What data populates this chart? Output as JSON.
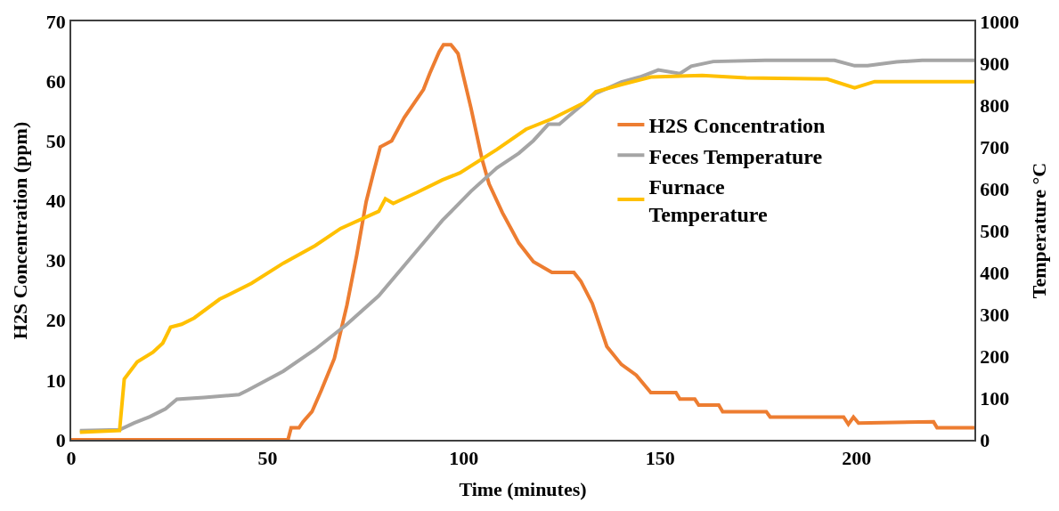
{
  "chart_data": {
    "type": "line",
    "xlabel": "Time (minutes)",
    "ylabel": "H2S Concentration (ppm)",
    "y2label": "Temperature °C",
    "xlim": [
      0,
      230
    ],
    "xticks": [
      0,
      50,
      100,
      150,
      200
    ],
    "ylim": [
      0,
      70
    ],
    "yticks": [
      0,
      10,
      20,
      30,
      40,
      50,
      60,
      70
    ],
    "y2lim": [
      0,
      1000
    ],
    "y2ticks": [
      0,
      100,
      200,
      300,
      400,
      500,
      600,
      700,
      800,
      900,
      1000
    ],
    "legend": "right",
    "marker": "none",
    "line_style": "solid",
    "series": [
      {
        "name": "H2S Concentration",
        "color": "#ed7d31",
        "x": [
          0,
          55.2,
          56,
          58,
          59,
          61.3,
          63.7,
          67,
          70.2,
          72.7,
          75.1,
          77.1,
          78.7,
          81.6,
          84.8,
          89.7,
          91.3,
          93.7,
          94.8,
          96.7,
          98.5,
          101.8,
          104.6,
          106.4,
          109.8,
          114,
          117.7,
          122.4,
          128,
          129.8,
          132.7,
          136.4,
          140.1,
          143.9,
          147.6,
          154,
          155,
          158.8,
          159.8,
          164.9,
          165.9,
          177,
          178,
          196.7,
          197.9,
          199.2,
          200.5,
          219.6,
          220.5,
          230
        ],
        "values": [
          0,
          0,
          2,
          2,
          3,
          4.7,
          8.3,
          13.6,
          22.5,
          30.9,
          39.8,
          45,
          49,
          50,
          53.9,
          58.6,
          61.3,
          64.9,
          66.1,
          66.1,
          64.6,
          55.5,
          47,
          42.8,
          38,
          32.9,
          29.8,
          28,
          28,
          26.5,
          22.8,
          15.6,
          12.6,
          10.8,
          7.9,
          7.9,
          6.8,
          6.8,
          5.8,
          5.8,
          4.7,
          4.7,
          3.8,
          3.8,
          2.6,
          3.8,
          2.8,
          3,
          2,
          2
        ]
      },
      {
        "name": "Feces Temperature",
        "color": "#a5a5a5",
        "axis": "y2",
        "x": [
          2.2,
          12.3,
          16,
          20,
          24,
          26.9,
          33.8,
          42.7,
          45.1,
          54,
          62.1,
          70.2,
          78.3,
          86.4,
          94.5,
          101.8,
          108.4,
          114,
          117.7,
          121.5,
          124.3,
          127,
          133.6,
          140.1,
          144.8,
          149.5,
          155,
          157.9,
          163.5,
          176.6,
          194.4,
          199.5,
          202.8,
          210.2,
          216.7,
          230
        ],
        "values": [
          22,
          24,
          40,
          55,
          74,
          97,
          101,
          108,
          119,
          164,
          216,
          276,
          344,
          434,
          524,
          594,
          650,
          685,
          715,
          754,
          754,
          776,
          828,
          855,
          867,
          884,
          875,
          893,
          904,
          907,
          907,
          894,
          894,
          903,
          907,
          907
        ]
      },
      {
        "name": "Furnace Temperature",
        "color": "#ffc000",
        "axis": "y2",
        "x": [
          2.2,
          12.3,
          13.5,
          16.8,
          20.8,
          23.3,
          25.3,
          28.1,
          31.3,
          37.8,
          45.9,
          54,
          62.1,
          68.6,
          78.3,
          80,
          82,
          88,
          94.5,
          99,
          108.4,
          115.8,
          122.4,
          130.7,
          133.6,
          140.1,
          147.6,
          160.7,
          171.9,
          192.5,
          199.5,
          204.6,
          230
        ],
        "values": [
          18,
          22,
          145,
          186,
          209,
          231,
          269,
          276,
          291,
          336,
          374,
          422,
          464,
          505,
          546,
          576,
          565,
          591,
          621,
          638,
          694,
          742,
          767,
          806,
          832,
          849,
          867,
          871,
          865,
          862,
          841,
          856,
          856
        ]
      }
    ]
  }
}
